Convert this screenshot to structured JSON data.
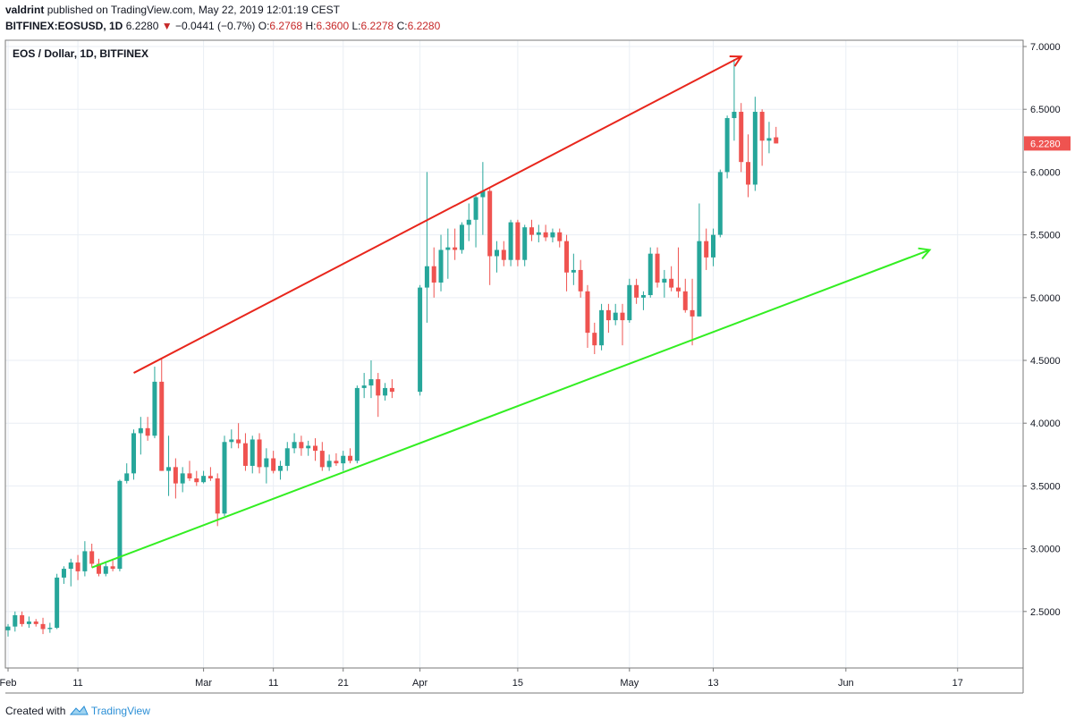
{
  "header": {
    "author": "valdrint",
    "published_text": "published on TradingView.com, May 22, 2019 12:01:19 CEST",
    "symbol": "BITFINEX:EOSUSD, 1D",
    "last": "6.2280",
    "change": "−0.0441 (−0.7%)",
    "o_label": "O:",
    "o_val": "6.2768",
    "h_label": "H:",
    "h_val": "6.3600",
    "l_label": "L:",
    "l_val": "6.2278",
    "c_label": "C:",
    "c_val": "6.2280"
  },
  "footer": {
    "created_with": "Created with",
    "brand": "TradingView"
  },
  "colors": {
    "up": "#26a69a",
    "down": "#ef5350",
    "resistance": "#e8261c",
    "support": "#33ee22",
    "price_label_bg": "#ef5350"
  },
  "chart_data": {
    "type": "candlestick",
    "title": "EOS / Dollar, 1D, BITFINEX",
    "ylim": [
      2.05,
      7.05
    ],
    "y_ticks": [
      "7.0000",
      "6.5000",
      "6.0000",
      "5.5000",
      "5.0000",
      "4.5000",
      "4.0000",
      "3.5000",
      "3.0000",
      "2.5000"
    ],
    "x_ticks": [
      {
        "label": "Feb",
        "date": "2019-02-01"
      },
      {
        "label": "11",
        "date": "2019-02-11"
      },
      {
        "label": "Mar",
        "date": "2019-03-01"
      },
      {
        "label": "11",
        "date": "2019-03-11"
      },
      {
        "label": "21",
        "date": "2019-03-21"
      },
      {
        "label": "Apr",
        "date": "2019-04-01"
      },
      {
        "label": "15",
        "date": "2019-04-15"
      },
      {
        "label": "May",
        "date": "2019-05-01"
      },
      {
        "label": "13",
        "date": "2019-05-13"
      },
      {
        "label": "Jun",
        "date": "2019-06-01"
      },
      {
        "label": "17",
        "date": "2019-06-17"
      }
    ],
    "x_start": "2019-02-01",
    "x_end": "2019-06-26",
    "last_price_label": "6.2280",
    "last_price": 6.228,
    "ohlc": [
      [
        "2019-02-01",
        2.35,
        2.4,
        2.3,
        2.38
      ],
      [
        "2019-02-02",
        2.38,
        2.5,
        2.34,
        2.47
      ],
      [
        "2019-02-03",
        2.47,
        2.5,
        2.38,
        2.4
      ],
      [
        "2019-02-04",
        2.4,
        2.46,
        2.37,
        2.42
      ],
      [
        "2019-02-05",
        2.42,
        2.44,
        2.38,
        2.4
      ],
      [
        "2019-02-06",
        2.4,
        2.45,
        2.32,
        2.36
      ],
      [
        "2019-02-07",
        2.36,
        2.41,
        2.33,
        2.37
      ],
      [
        "2019-02-08",
        2.37,
        2.8,
        2.36,
        2.77
      ],
      [
        "2019-02-09",
        2.77,
        2.86,
        2.72,
        2.84
      ],
      [
        "2019-02-10",
        2.84,
        2.92,
        2.7,
        2.89
      ],
      [
        "2019-02-11",
        2.89,
        2.95,
        2.75,
        2.82
      ],
      [
        "2019-02-12",
        2.82,
        3.06,
        2.78,
        2.98
      ],
      [
        "2019-02-13",
        2.98,
        3.04,
        2.85,
        2.88
      ],
      [
        "2019-02-14",
        2.88,
        2.92,
        2.78,
        2.8
      ],
      [
        "2019-02-15",
        2.8,
        2.9,
        2.78,
        2.86
      ],
      [
        "2019-02-16",
        2.86,
        2.92,
        2.82,
        2.84
      ],
      [
        "2019-02-17",
        2.84,
        3.55,
        2.82,
        3.54
      ],
      [
        "2019-02-18",
        3.54,
        3.68,
        3.52,
        3.6
      ],
      [
        "2019-02-19",
        3.6,
        3.95,
        3.55,
        3.92
      ],
      [
        "2019-02-20",
        3.92,
        4.05,
        3.75,
        3.96
      ],
      [
        "2019-02-21",
        3.96,
        4.05,
        3.86,
        3.9
      ],
      [
        "2019-02-22",
        3.9,
        4.45,
        3.88,
        4.33
      ],
      [
        "2019-02-23",
        4.33,
        4.52,
        3.62,
        3.62
      ],
      [
        "2019-02-24",
        3.62,
        3.9,
        3.42,
        3.65
      ],
      [
        "2019-02-25",
        3.65,
        3.72,
        3.4,
        3.52
      ],
      [
        "2019-02-26",
        3.52,
        3.65,
        3.45,
        3.6
      ],
      [
        "2019-02-27",
        3.6,
        3.7,
        3.54,
        3.56
      ],
      [
        "2019-02-28",
        3.56,
        3.62,
        3.5,
        3.53
      ],
      [
        "2019-03-01",
        3.53,
        3.62,
        3.52,
        3.58
      ],
      [
        "2019-03-02",
        3.58,
        3.65,
        3.54,
        3.56
      ],
      [
        "2019-03-03",
        3.56,
        3.6,
        3.18,
        3.28
      ],
      [
        "2019-03-04",
        3.28,
        3.9,
        3.26,
        3.85
      ],
      [
        "2019-03-05",
        3.85,
        3.95,
        3.8,
        3.87
      ],
      [
        "2019-03-06",
        3.87,
        4.0,
        3.8,
        3.84
      ],
      [
        "2019-03-07",
        3.84,
        3.92,
        3.62,
        3.66
      ],
      [
        "2019-03-08",
        3.66,
        3.9,
        3.6,
        3.87
      ],
      [
        "2019-03-09",
        3.87,
        3.92,
        3.6,
        3.65
      ],
      [
        "2019-03-10",
        3.65,
        3.8,
        3.52,
        3.72
      ],
      [
        "2019-03-11",
        3.72,
        3.78,
        3.6,
        3.62
      ],
      [
        "2019-03-12",
        3.62,
        3.7,
        3.55,
        3.66
      ],
      [
        "2019-03-13",
        3.66,
        3.85,
        3.62,
        3.8
      ],
      [
        "2019-03-14",
        3.8,
        3.92,
        3.76,
        3.85
      ],
      [
        "2019-03-15",
        3.85,
        3.9,
        3.74,
        3.8
      ],
      [
        "2019-03-16",
        3.8,
        3.86,
        3.74,
        3.82
      ],
      [
        "2019-03-17",
        3.82,
        3.88,
        3.7,
        3.78
      ],
      [
        "2019-03-18",
        3.78,
        3.85,
        3.62,
        3.65
      ],
      [
        "2019-03-19",
        3.65,
        3.75,
        3.62,
        3.7
      ],
      [
        "2019-03-20",
        3.7,
        3.76,
        3.66,
        3.68
      ],
      [
        "2019-03-21",
        3.68,
        3.78,
        3.62,
        3.74
      ],
      [
        "2019-03-22",
        3.74,
        3.8,
        3.68,
        3.7
      ],
      [
        "2019-03-23",
        3.7,
        4.3,
        3.68,
        4.28
      ],
      [
        "2019-03-24",
        4.28,
        4.4,
        4.2,
        4.3
      ],
      [
        "2019-03-25",
        4.3,
        4.5,
        4.2,
        4.35
      ],
      [
        "2019-03-26",
        4.35,
        4.4,
        4.05,
        4.22
      ],
      [
        "2019-03-27",
        4.22,
        4.32,
        4.18,
        4.28
      ],
      [
        "2019-03-28",
        4.28,
        4.35,
        4.2,
        4.25
      ],
      [
        "2019-04-01",
        4.25,
        5.1,
        4.22,
        5.08
      ],
      [
        "2019-04-02",
        5.08,
        6.0,
        4.8,
        5.25
      ],
      [
        "2019-04-03",
        5.25,
        5.4,
        5.0,
        5.12
      ],
      [
        "2019-04-04",
        5.12,
        5.5,
        5.05,
        5.38
      ],
      [
        "2019-04-05",
        5.38,
        5.55,
        5.15,
        5.4
      ],
      [
        "2019-04-06",
        5.4,
        5.55,
        5.3,
        5.38
      ],
      [
        "2019-04-07",
        5.38,
        5.6,
        5.35,
        5.58
      ],
      [
        "2019-04-08",
        5.58,
        5.75,
        5.45,
        5.62
      ],
      [
        "2019-04-09",
        5.62,
        5.82,
        5.4,
        5.8
      ],
      [
        "2019-04-10",
        5.8,
        6.08,
        5.5,
        5.85
      ],
      [
        "2019-04-11",
        5.85,
        5.88,
        5.1,
        5.33
      ],
      [
        "2019-04-12",
        5.33,
        5.45,
        5.2,
        5.38
      ],
      [
        "2019-04-13",
        5.38,
        5.45,
        5.25,
        5.3
      ],
      [
        "2019-04-14",
        5.3,
        5.62,
        5.25,
        5.6
      ],
      [
        "2019-04-15",
        5.6,
        5.62,
        5.25,
        5.3
      ],
      [
        "2019-04-16",
        5.3,
        5.58,
        5.25,
        5.56
      ],
      [
        "2019-04-17",
        5.56,
        5.62,
        5.45,
        5.5
      ],
      [
        "2019-04-18",
        5.5,
        5.58,
        5.44,
        5.52
      ],
      [
        "2019-04-19",
        5.52,
        5.58,
        5.45,
        5.48
      ],
      [
        "2019-04-20",
        5.48,
        5.55,
        5.44,
        5.52
      ],
      [
        "2019-04-21",
        5.52,
        5.55,
        5.4,
        5.45
      ],
      [
        "2019-04-22",
        5.45,
        5.5,
        5.05,
        5.2
      ],
      [
        "2019-04-23",
        5.2,
        5.35,
        5.1,
        5.22
      ],
      [
        "2019-04-24",
        5.22,
        5.3,
        5.0,
        5.05
      ],
      [
        "2019-04-25",
        5.05,
        5.1,
        4.6,
        4.72
      ],
      [
        "2019-04-26",
        4.72,
        4.8,
        4.55,
        4.62
      ],
      [
        "2019-04-27",
        4.62,
        4.95,
        4.58,
        4.9
      ],
      [
        "2019-04-28",
        4.9,
        4.95,
        4.72,
        4.82
      ],
      [
        "2019-04-29",
        4.82,
        4.95,
        4.78,
        4.88
      ],
      [
        "2019-04-30",
        4.88,
        4.95,
        4.62,
        4.82
      ],
      [
        "2019-05-01",
        4.82,
        5.15,
        4.8,
        5.1
      ],
      [
        "2019-05-02",
        5.1,
        5.15,
        4.95,
        5.0
      ],
      [
        "2019-05-03",
        5.0,
        5.05,
        4.9,
        5.02
      ],
      [
        "2019-05-04",
        5.02,
        5.4,
        5.0,
        5.35
      ],
      [
        "2019-05-05",
        5.35,
        5.4,
        5.08,
        5.12
      ],
      [
        "2019-05-06",
        5.12,
        5.22,
        5.0,
        5.15
      ],
      [
        "2019-05-07",
        5.15,
        5.25,
        5.05,
        5.08
      ],
      [
        "2019-05-08",
        5.08,
        5.4,
        5.0,
        5.05
      ],
      [
        "2019-05-09",
        5.05,
        5.15,
        4.88,
        4.9
      ],
      [
        "2019-05-10",
        4.9,
        5.15,
        4.62,
        4.85
      ],
      [
        "2019-05-11",
        4.85,
        5.75,
        4.85,
        5.45
      ],
      [
        "2019-05-12",
        5.45,
        5.55,
        5.22,
        5.32
      ],
      [
        "2019-05-13",
        5.32,
        5.55,
        5.25,
        5.5
      ],
      [
        "2019-05-14",
        5.5,
        6.02,
        5.48,
        6.0
      ],
      [
        "2019-05-15",
        6.0,
        6.45,
        5.95,
        6.43
      ],
      [
        "2019-05-16",
        6.43,
        6.9,
        6.25,
        6.48
      ],
      [
        "2019-05-17",
        6.48,
        6.55,
        6.0,
        6.08
      ],
      [
        "2019-05-18",
        6.08,
        6.3,
        5.8,
        5.9
      ],
      [
        "2019-05-19",
        5.9,
        6.6,
        5.85,
        6.48
      ],
      [
        "2019-05-20",
        6.48,
        6.5,
        6.05,
        6.25
      ],
      [
        "2019-05-21",
        6.25,
        6.4,
        6.15,
        6.27
      ],
      [
        "2019-05-22",
        6.2768,
        6.36,
        6.2278,
        6.228
      ]
    ],
    "trendlines": [
      {
        "color_key": "resistance",
        "from": [
          "2019-02-19",
          4.4
        ],
        "to": [
          "2019-05-17",
          6.92
        ],
        "arrow": true
      },
      {
        "color_key": "support",
        "from": [
          "2019-02-13",
          2.85
        ],
        "to": [
          "2019-06-13",
          5.38
        ],
        "arrow": true
      }
    ]
  }
}
